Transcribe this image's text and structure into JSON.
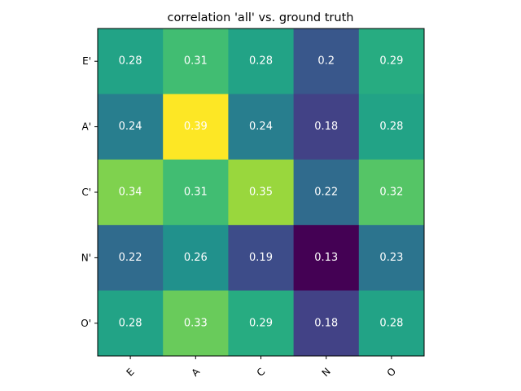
{
  "chart_data": {
    "type": "heatmap",
    "title": "correlation 'all' vs. ground truth",
    "x_categories": [
      "E",
      "A",
      "C",
      "N",
      "O"
    ],
    "y_categories": [
      "E'",
      "A'",
      "C'",
      "N'",
      "O'"
    ],
    "values": [
      [
        0.28,
        0.31,
        0.28,
        0.2,
        0.29
      ],
      [
        0.24,
        0.39,
        0.24,
        0.18,
        0.28
      ],
      [
        0.34,
        0.31,
        0.35,
        0.22,
        0.32
      ],
      [
        0.22,
        0.26,
        0.19,
        0.13,
        0.23
      ],
      [
        0.28,
        0.33,
        0.29,
        0.18,
        0.28
      ]
    ],
    "value_labels": [
      [
        "0.28",
        "0.31",
        "0.28",
        "0.2",
        "0.29"
      ],
      [
        "0.24",
        "0.39",
        "0.24",
        "0.18",
        "0.28"
      ],
      [
        "0.34",
        "0.31",
        "0.35",
        "0.22",
        "0.32"
      ],
      [
        "0.22",
        "0.26",
        "0.19",
        "0.13",
        "0.23"
      ],
      [
        "0.28",
        "0.33",
        "0.29",
        "0.18",
        "0.28"
      ]
    ],
    "colormap": "viridis",
    "color_range": [
      0.13,
      0.39
    ],
    "x_tick_rotation_deg": 45,
    "grid": false,
    "legend": "none"
  }
}
